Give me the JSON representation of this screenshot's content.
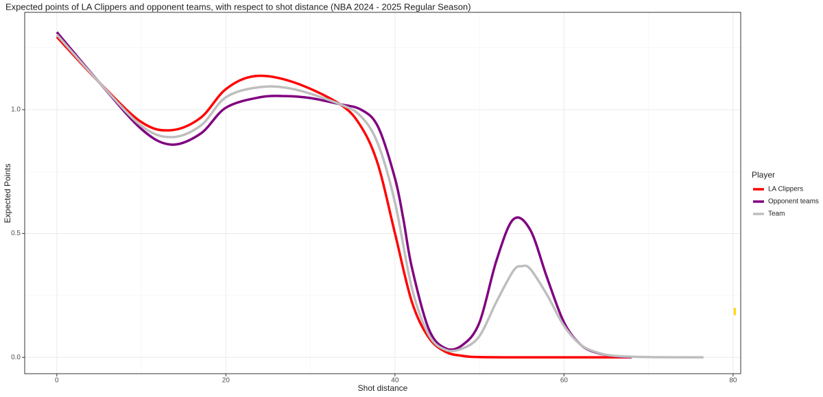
{
  "chart_data": {
    "type": "line",
    "title": "Expected points of LA Clippers and opponent teams, with respect to shot distance (NBA 2024 - 2025 Regular Season)",
    "x_label": "Shot distance",
    "y_label": "Expected Points",
    "legend_title": "Player",
    "legend_position": "right",
    "grid": true,
    "xlim": [
      -3.8,
      80.9
    ],
    "ylim": [
      -0.066,
      1.393
    ],
    "xticks": [
      0,
      20,
      40,
      60,
      80
    ],
    "yticks": [
      {
        "value": 0,
        "label": "0.0"
      },
      {
        "value": 0.5,
        "label": "0.5"
      },
      {
        "value": 1,
        "label": "1.0"
      }
    ],
    "x_minor_ticks": [
      10,
      30,
      50,
      70
    ],
    "y_minor_ticks": [
      0.25,
      0.75,
      1.25
    ],
    "series": [
      {
        "name": "LA Clippers",
        "color": "#ff0000",
        "x": [
          0,
          5,
          10,
          13.5,
          17,
          20,
          23.5,
          28,
          33.5,
          36,
          38,
          40,
          42,
          44,
          46,
          48,
          50,
          55,
          60,
          68
        ],
        "values": [
          1.294,
          1.111,
          0.95,
          0.917,
          0.967,
          1.083,
          1.136,
          1.111,
          1.022,
          0.931,
          0.778,
          0.501,
          0.224,
          0.08,
          0.022,
          0.006,
          0.001,
          0,
          0,
          0
        ]
      },
      {
        "name": "Opponent teams",
        "color": "#800080",
        "x": [
          0,
          5,
          10,
          13.5,
          17,
          20,
          24,
          27,
          30,
          33.5,
          36,
          38,
          40,
          41,
          42,
          44,
          46,
          48,
          50,
          52,
          54,
          56,
          58,
          60,
          62,
          64,
          66,
          68
        ],
        "values": [
          1.313,
          1.111,
          0.922,
          0.859,
          0.903,
          1.008,
          1.05,
          1.055,
          1.047,
          1.022,
          1.0,
          0.931,
          0.723,
          0.557,
          0.363,
          0.114,
          0.036,
          0.05,
          0.141,
          0.39,
          0.557,
          0.515,
          0.321,
          0.141,
          0.05,
          0.017,
          0.005,
          0.001
        ]
      },
      {
        "name": "Team",
        "color": "#bebebe",
        "x": [
          0,
          5,
          10,
          13.5,
          17,
          20,
          24,
          28,
          33.5,
          36,
          38,
          40,
          42,
          44,
          46,
          48,
          50,
          52,
          54,
          55,
          56,
          58,
          60,
          62,
          64,
          66,
          70,
          76.5
        ],
        "values": [
          1.303,
          1.111,
          0.935,
          0.889,
          0.935,
          1.05,
          1.091,
          1.083,
          1.022,
          0.972,
          0.861,
          0.626,
          0.28,
          0.091,
          0.03,
          0.036,
          0.086,
          0.224,
          0.349,
          0.368,
          0.357,
          0.252,
          0.127,
          0.05,
          0.019,
          0.006,
          0.001,
          0
        ]
      }
    ],
    "marker": {
      "color": "#ffd700",
      "x": 80.2,
      "y": [
        0.17,
        0.2
      ]
    }
  }
}
